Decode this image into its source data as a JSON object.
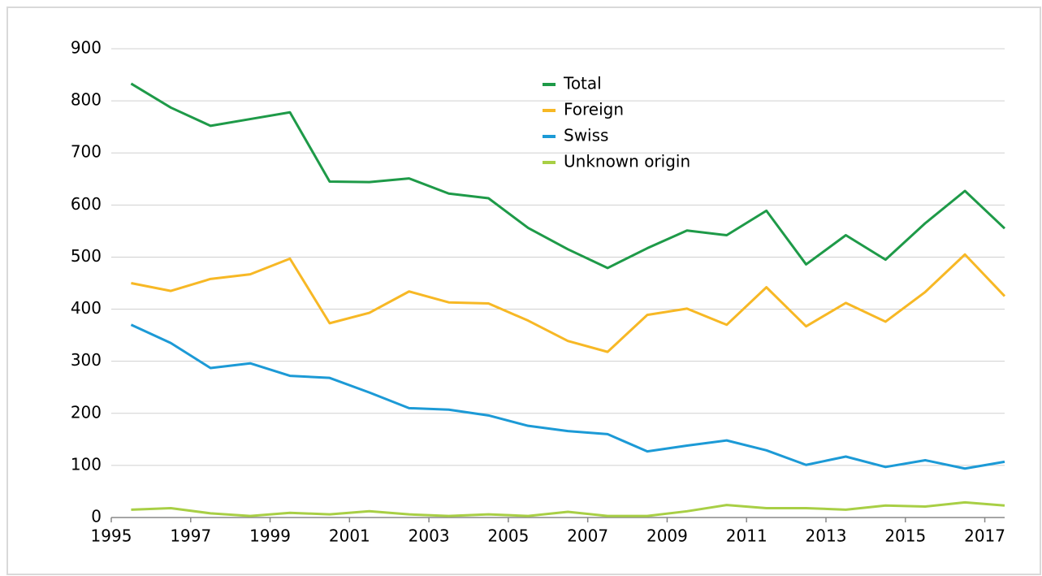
{
  "chart_data": {
    "type": "line",
    "x": [
      1995.5,
      1996.5,
      1997.5,
      1998.5,
      1999.5,
      2000.5,
      2001.5,
      2002.5,
      2003.5,
      2004.5,
      2005.5,
      2006.5,
      2007.5,
      2008.5,
      2009.5,
      2010.5,
      2011.5,
      2012.5,
      2013.5,
      2014.5,
      2015.5,
      2016.5,
      2017.5
    ],
    "series": [
      {
        "name": "Total",
        "color": "#1e9a48",
        "values": [
          833,
          787,
          752,
          765,
          778,
          645,
          644,
          651,
          622,
          613,
          556,
          515,
          479,
          517,
          551,
          542,
          589,
          486,
          542,
          495,
          565,
          627,
          555
        ]
      },
      {
        "name": "Foreign",
        "color": "#f7b825",
        "values": [
          450,
          435,
          458,
          467,
          497,
          373,
          393,
          434,
          413,
          411,
          378,
          339,
          318,
          389,
          401,
          370,
          442,
          367,
          412,
          376,
          433,
          505,
          425
        ]
      },
      {
        "name": "Swiss",
        "color": "#1c9ad6",
        "values": [
          370,
          335,
          287,
          296,
          272,
          268,
          240,
          210,
          207,
          196,
          176,
          166,
          160,
          127,
          138,
          148,
          129,
          101,
          117,
          97,
          110,
          94,
          107
        ]
      },
      {
        "name": "Unknown origin",
        "color": "#a8cf45",
        "values": [
          15,
          18,
          8,
          3,
          9,
          6,
          12,
          6,
          3,
          6,
          3,
          11,
          3,
          3,
          12,
          24,
          18,
          18,
          15,
          23,
          21,
          29,
          23
        ]
      }
    ],
    "xlim": [
      1995,
      2017.5
    ],
    "xticks": [
      1995,
      1997,
      1999,
      2001,
      2003,
      2005,
      2007,
      2009,
      2011,
      2013,
      2015,
      2017
    ],
    "ylim": [
      0,
      900
    ],
    "yticks": [
      0,
      100,
      200,
      300,
      400,
      500,
      600,
      700,
      800,
      900
    ],
    "grid": true
  }
}
